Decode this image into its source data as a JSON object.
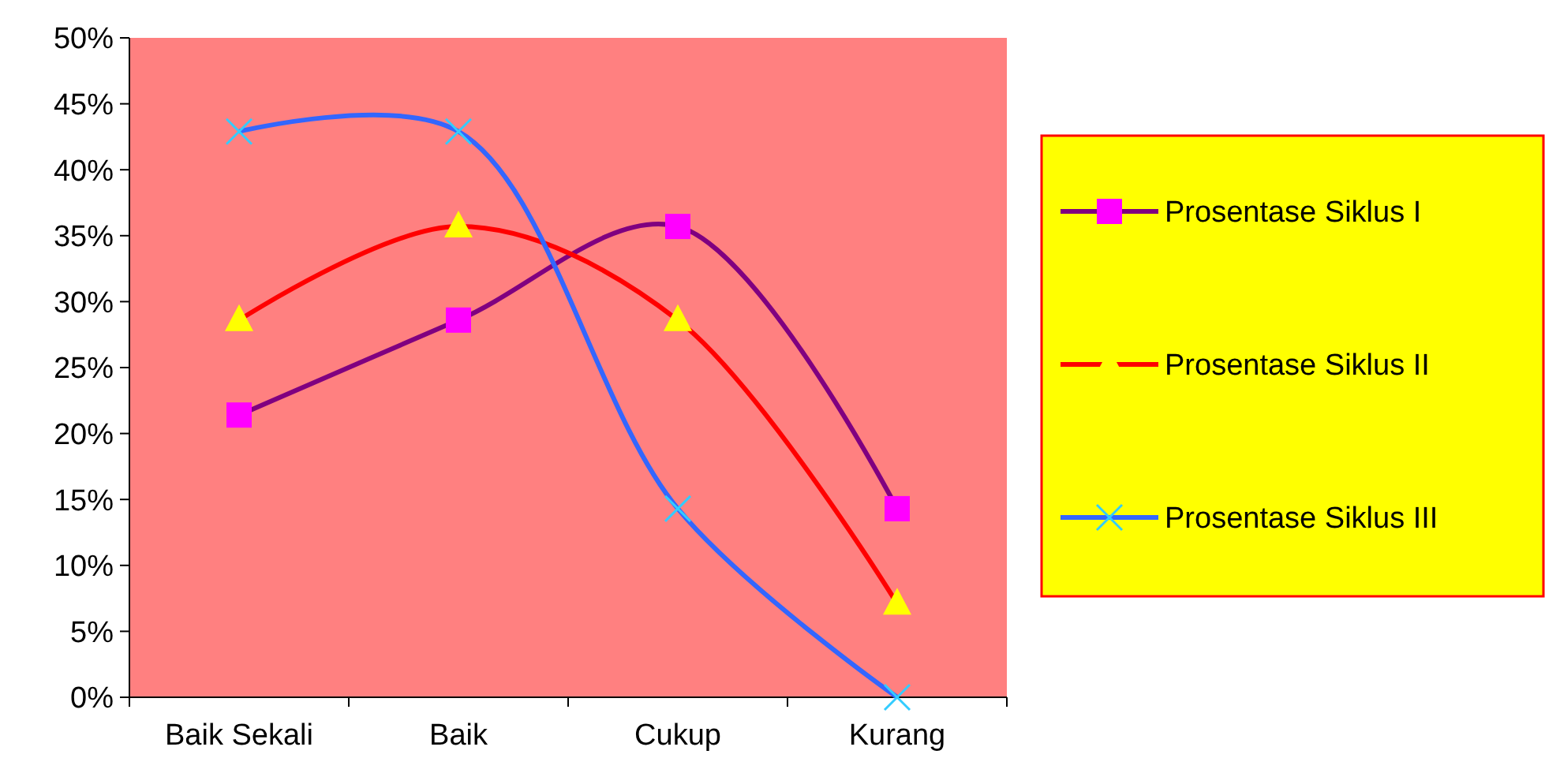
{
  "chart_data": {
    "type": "line",
    "categories": [
      "Baik Sekali",
      "Baik",
      "Cukup",
      "Kurang"
    ],
    "series": [
      {
        "name": "Prosentase Siklus I",
        "color": "#800080",
        "marker": "square",
        "colors": [
          "#ff00ff",
          "#ff00ff",
          "#ff00ff",
          "#ff00ff"
        ],
        "values": [
          21.4,
          28.6,
          35.7,
          14.3
        ]
      },
      {
        "name": "Prosentase Siklus II",
        "color": "#ff0000",
        "marker": "triangle",
        "colors": [
          "#ffff00",
          "#ffff00",
          "#ffff00",
          "#ffff00"
        ],
        "values": [
          28.6,
          35.7,
          28.6,
          7.1
        ]
      },
      {
        "name": "Prosentase Siklus III",
        "color": "#3366ff",
        "marker": "cross",
        "colors": [
          "#33ccff",
          "#33ccff",
          "#33ccff",
          "#33ccff"
        ],
        "values": [
          42.9,
          42.9,
          14.3,
          0
        ]
      }
    ],
    "ylim": [
      0,
      50
    ],
    "yticks": [
      {
        "value": 0,
        "label": "0%"
      },
      {
        "value": 5,
        "label": "5%"
      },
      {
        "value": 10,
        "label": "10%"
      },
      {
        "value": 15,
        "label": "15%"
      },
      {
        "value": 20,
        "label": "20%"
      },
      {
        "value": 25,
        "label": "25%"
      },
      {
        "value": 30,
        "label": "30%"
      },
      {
        "value": 35,
        "label": "35%"
      },
      {
        "value": 40,
        "label": "40%"
      },
      {
        "value": 45,
        "label": "45%"
      },
      {
        "value": 50,
        "label": "50%"
      }
    ],
    "grid": false,
    "legend": "right"
  }
}
